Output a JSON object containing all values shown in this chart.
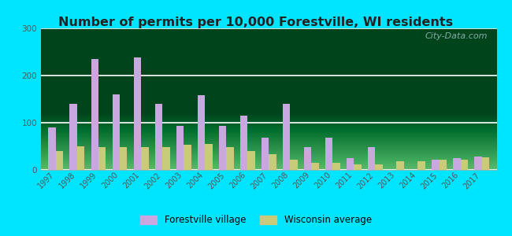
{
  "title": "Number of permits per 10,000 Forestville, WI residents",
  "years": [
    1997,
    1998,
    1999,
    2000,
    2001,
    2002,
    2003,
    2004,
    2005,
    2006,
    2007,
    2008,
    2009,
    2010,
    2011,
    2012,
    2013,
    2014,
    2015,
    2016,
    2017
  ],
  "forestville": [
    90,
    140,
    235,
    160,
    238,
    140,
    93,
    158,
    93,
    115,
    68,
    140,
    48,
    68,
    25,
    48,
    0,
    0,
    22,
    25,
    28
  ],
  "wisconsin": [
    40,
    50,
    48,
    48,
    48,
    48,
    53,
    55,
    48,
    40,
    33,
    22,
    15,
    15,
    12,
    12,
    18,
    18,
    22,
    22,
    27
  ],
  "forestville_color": "#c9a8df",
  "wisconsin_color": "#c8cc78",
  "background_color": "#00e5ff",
  "ylim": [
    0,
    300
  ],
  "yticks": [
    0,
    100,
    200,
    300
  ],
  "title_fontsize": 11.5,
  "bar_width": 0.35,
  "legend_forestville": "Forestville village",
  "legend_wisconsin": "Wisconsin average",
  "watermark": "City-Data.com"
}
